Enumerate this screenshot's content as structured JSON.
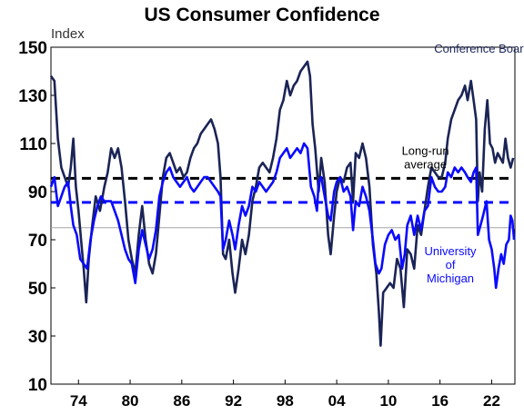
{
  "chart_data": {
    "type": "line",
    "title": "US Consumer Confidence",
    "ylabel": "Index",
    "ylim": [
      10,
      150
    ],
    "xlim": [
      1970.8,
      2024.7
    ],
    "yticks": [
      10,
      30,
      50,
      70,
      90,
      110,
      130,
      150
    ],
    "xticks": [
      {
        "year": 1974,
        "label": "74"
      },
      {
        "year": 1980,
        "label": "80"
      },
      {
        "year": 1986,
        "label": "86"
      },
      {
        "year": 1992,
        "label": "92"
      },
      {
        "year": 1998,
        "label": "98"
      },
      {
        "year": 2004,
        "label": "04"
      },
      {
        "year": 2010,
        "label": "10"
      },
      {
        "year": 2016,
        "label": "16"
      },
      {
        "year": 2022,
        "label": "22"
      }
    ],
    "grid": false,
    "reference_lines": [
      {
        "y": 75,
        "style": "solid",
        "color": "#a6a6a6"
      }
    ],
    "series": [
      {
        "name": "Conference Board",
        "color": "#1a2456",
        "long_run_average": 95.5,
        "points": [
          [
            1970.8,
            138
          ],
          [
            1971.2,
            136
          ],
          [
            1971.6,
            112
          ],
          [
            1972.0,
            100
          ],
          [
            1972.4,
            96
          ],
          [
            1972.8,
            92
          ],
          [
            1973.1,
            100
          ],
          [
            1973.4,
            112
          ],
          [
            1973.7,
            92
          ],
          [
            1974.0,
            82
          ],
          [
            1974.3,
            70
          ],
          [
            1974.6,
            58
          ],
          [
            1974.9,
            44
          ],
          [
            1975.2,
            62
          ],
          [
            1975.6,
            76
          ],
          [
            1976.0,
            88
          ],
          [
            1976.5,
            82
          ],
          [
            1977.0,
            92
          ],
          [
            1977.4,
            98
          ],
          [
            1977.8,
            108
          ],
          [
            1978.2,
            104
          ],
          [
            1978.6,
            108
          ],
          [
            1979.0,
            100
          ],
          [
            1979.4,
            86
          ],
          [
            1979.8,
            70
          ],
          [
            1980.2,
            62
          ],
          [
            1980.6,
            56
          ],
          [
            1981.0,
            72
          ],
          [
            1981.4,
            84
          ],
          [
            1981.8,
            70
          ],
          [
            1982.2,
            60
          ],
          [
            1982.6,
            56
          ],
          [
            1983.0,
            64
          ],
          [
            1983.4,
            80
          ],
          [
            1983.8,
            96
          ],
          [
            1984.2,
            104
          ],
          [
            1984.6,
            106
          ],
          [
            1985.0,
            102
          ],
          [
            1985.4,
            98
          ],
          [
            1985.8,
            100
          ],
          [
            1986.2,
            96
          ],
          [
            1986.6,
            98
          ],
          [
            1987.0,
            104
          ],
          [
            1987.4,
            108
          ],
          [
            1987.8,
            110
          ],
          [
            1988.2,
            114
          ],
          [
            1988.6,
            116
          ],
          [
            1989.0,
            118
          ],
          [
            1989.4,
            120
          ],
          [
            1989.8,
            116
          ],
          [
            1990.2,
            110
          ],
          [
            1990.5,
            96
          ],
          [
            1990.8,
            64
          ],
          [
            1991.1,
            62
          ],
          [
            1991.5,
            70
          ],
          [
            1991.9,
            56
          ],
          [
            1992.2,
            48
          ],
          [
            1992.6,
            58
          ],
          [
            1993.0,
            70
          ],
          [
            1993.4,
            64
          ],
          [
            1993.8,
            72
          ],
          [
            1994.2,
            86
          ],
          [
            1994.6,
            92
          ],
          [
            1995.0,
            100
          ],
          [
            1995.4,
            102
          ],
          [
            1995.8,
            100
          ],
          [
            1996.2,
            98
          ],
          [
            1996.6,
            104
          ],
          [
            1997.0,
            112
          ],
          [
            1997.4,
            124
          ],
          [
            1997.8,
            128
          ],
          [
            1998.2,
            136
          ],
          [
            1998.6,
            130
          ],
          [
            1999.0,
            134
          ],
          [
            1999.4,
            136
          ],
          [
            1999.8,
            140
          ],
          [
            2000.2,
            142
          ],
          [
            2000.6,
            144
          ],
          [
            2000.9,
            138
          ],
          [
            2001.2,
            118
          ],
          [
            2001.5,
            108
          ],
          [
            2001.9,
            90
          ],
          [
            2002.2,
            104
          ],
          [
            2002.6,
            94
          ],
          [
            2003.0,
            72
          ],
          [
            2003.3,
            64
          ],
          [
            2003.7,
            80
          ],
          [
            2004.0,
            90
          ],
          [
            2004.4,
            96
          ],
          [
            2004.8,
            94
          ],
          [
            2005.2,
            100
          ],
          [
            2005.6,
            102
          ],
          [
            2005.9,
            86
          ],
          [
            2006.2,
            106
          ],
          [
            2006.6,
            104
          ],
          [
            2007.0,
            110
          ],
          [
            2007.4,
            104
          ],
          [
            2007.8,
            92
          ],
          [
            2008.2,
            68
          ],
          [
            2008.6,
            56
          ],
          [
            2008.9,
            40
          ],
          [
            2009.1,
            26
          ],
          [
            2009.4,
            48
          ],
          [
            2009.8,
            50
          ],
          [
            2010.2,
            52
          ],
          [
            2010.6,
            50
          ],
          [
            2011.0,
            62
          ],
          [
            2011.4,
            58
          ],
          [
            2011.8,
            42
          ],
          [
            2012.2,
            66
          ],
          [
            2012.6,
            64
          ],
          [
            2013.0,
            58
          ],
          [
            2013.4,
            76
          ],
          [
            2013.8,
            72
          ],
          [
            2014.2,
            82
          ],
          [
            2014.6,
            92
          ],
          [
            2015.0,
            100
          ],
          [
            2015.4,
            98
          ],
          [
            2015.8,
            96
          ],
          [
            2016.2,
            96
          ],
          [
            2016.6,
            102
          ],
          [
            2016.9,
            112
          ],
          [
            2017.3,
            120
          ],
          [
            2017.7,
            124
          ],
          [
            2018.1,
            128
          ],
          [
            2018.5,
            130
          ],
          [
            2018.9,
            134
          ],
          [
            2019.2,
            128
          ],
          [
            2019.6,
            136
          ],
          [
            2019.9,
            128
          ],
          [
            2020.2,
            120
          ],
          [
            2020.4,
            86
          ],
          [
            2020.6,
            98
          ],
          [
            2020.9,
            90
          ],
          [
            2021.2,
            116
          ],
          [
            2021.5,
            128
          ],
          [
            2021.8,
            110
          ],
          [
            2022.1,
            108
          ],
          [
            2022.4,
            102
          ],
          [
            2022.7,
            106
          ],
          [
            2023.0,
            104
          ],
          [
            2023.3,
            102
          ],
          [
            2023.6,
            112
          ],
          [
            2023.9,
            104
          ],
          [
            2024.2,
            100
          ],
          [
            2024.5,
            104
          ]
        ]
      },
      {
        "name": "University of Michigan",
        "color": "#0a0aff",
        "long_run_average": 85.5,
        "points": [
          [
            1970.8,
            92
          ],
          [
            1971.2,
            96
          ],
          [
            1971.6,
            84
          ],
          [
            1972.0,
            88
          ],
          [
            1972.4,
            92
          ],
          [
            1972.8,
            94
          ],
          [
            1973.1,
            84
          ],
          [
            1973.4,
            76
          ],
          [
            1973.8,
            72
          ],
          [
            1974.2,
            62
          ],
          [
            1974.6,
            60
          ],
          [
            1975.0,
            58
          ],
          [
            1975.4,
            70
          ],
          [
            1975.8,
            78
          ],
          [
            1976.2,
            84
          ],
          [
            1976.6,
            88
          ],
          [
            1977.0,
            86
          ],
          [
            1977.4,
            86
          ],
          [
            1977.8,
            86
          ],
          [
            1978.2,
            82
          ],
          [
            1978.6,
            78
          ],
          [
            1979.0,
            72
          ],
          [
            1979.4,
            66
          ],
          [
            1979.8,
            62
          ],
          [
            1980.2,
            60
          ],
          [
            1980.6,
            52
          ],
          [
            1981.0,
            66
          ],
          [
            1981.4,
            74
          ],
          [
            1981.8,
            68
          ],
          [
            1982.2,
            62
          ],
          [
            1982.6,
            66
          ],
          [
            1983.0,
            74
          ],
          [
            1983.4,
            88
          ],
          [
            1983.8,
            94
          ],
          [
            1984.2,
            98
          ],
          [
            1984.6,
            100
          ],
          [
            1985.0,
            96
          ],
          [
            1985.4,
            94
          ],
          [
            1985.8,
            92
          ],
          [
            1986.2,
            94
          ],
          [
            1986.6,
            96
          ],
          [
            1987.0,
            92
          ],
          [
            1987.4,
            90
          ],
          [
            1987.8,
            92
          ],
          [
            1988.2,
            94
          ],
          [
            1988.6,
            96
          ],
          [
            1989.0,
            96
          ],
          [
            1989.4,
            94
          ],
          [
            1989.8,
            92
          ],
          [
            1990.2,
            90
          ],
          [
            1990.5,
            88
          ],
          [
            1990.8,
            66
          ],
          [
            1991.1,
            70
          ],
          [
            1991.5,
            78
          ],
          [
            1991.9,
            72
          ],
          [
            1992.2,
            66
          ],
          [
            1992.6,
            76
          ],
          [
            1993.0,
            84
          ],
          [
            1993.4,
            80
          ],
          [
            1993.8,
            84
          ],
          [
            1994.2,
            92
          ],
          [
            1994.6,
            90
          ],
          [
            1995.0,
            94
          ],
          [
            1995.4,
            92
          ],
          [
            1995.8,
            90
          ],
          [
            1996.2,
            92
          ],
          [
            1996.6,
            94
          ],
          [
            1997.0,
            98
          ],
          [
            1997.4,
            104
          ],
          [
            1997.8,
            106
          ],
          [
            1998.2,
            108
          ],
          [
            1998.6,
            104
          ],
          [
            1999.0,
            106
          ],
          [
            1999.4,
            108
          ],
          [
            1999.8,
            106
          ],
          [
            2000.2,
            110
          ],
          [
            2000.6,
            108
          ],
          [
            2001.0,
            92
          ],
          [
            2001.4,
            88
          ],
          [
            2001.7,
            82
          ],
          [
            2001.9,
            94
          ],
          [
            2002.2,
            96
          ],
          [
            2002.6,
            88
          ],
          [
            2003.0,
            80
          ],
          [
            2003.3,
            78
          ],
          [
            2003.7,
            90
          ],
          [
            2004.0,
            94
          ],
          [
            2004.4,
            96
          ],
          [
            2004.8,
            90
          ],
          [
            2005.2,
            92
          ],
          [
            2005.6,
            88
          ],
          [
            2005.9,
            74
          ],
          [
            2006.2,
            86
          ],
          [
            2006.6,
            84
          ],
          [
            2007.0,
            92
          ],
          [
            2007.4,
            88
          ],
          [
            2007.8,
            82
          ],
          [
            2008.2,
            70
          ],
          [
            2008.5,
            60
          ],
          [
            2008.9,
            56
          ],
          [
            2009.2,
            58
          ],
          [
            2009.6,
            68
          ],
          [
            2010.0,
            72
          ],
          [
            2010.4,
            74
          ],
          [
            2010.8,
            70
          ],
          [
            2011.2,
            72
          ],
          [
            2011.6,
            58
          ],
          [
            2011.9,
            64
          ],
          [
            2012.2,
            76
          ],
          [
            2012.6,
            80
          ],
          [
            2013.0,
            72
          ],
          [
            2013.4,
            80
          ],
          [
            2013.8,
            74
          ],
          [
            2014.2,
            82
          ],
          [
            2014.6,
            84
          ],
          [
            2015.0,
            96
          ],
          [
            2015.4,
            92
          ],
          [
            2015.8,
            90
          ],
          [
            2016.2,
            90
          ],
          [
            2016.6,
            92
          ],
          [
            2016.9,
            98
          ],
          [
            2017.3,
            96
          ],
          [
            2017.7,
            100
          ],
          [
            2018.1,
            98
          ],
          [
            2018.5,
            100
          ],
          [
            2018.9,
            98
          ],
          [
            2019.2,
            96
          ],
          [
            2019.6,
            94
          ],
          [
            2019.9,
            98
          ],
          [
            2020.2,
            100
          ],
          [
            2020.4,
            72
          ],
          [
            2020.7,
            76
          ],
          [
            2021.0,
            80
          ],
          [
            2021.4,
            86
          ],
          [
            2021.7,
            70
          ],
          [
            2022.0,
            66
          ],
          [
            2022.3,
            58
          ],
          [
            2022.5,
            50
          ],
          [
            2022.8,
            58
          ],
          [
            2023.1,
            64
          ],
          [
            2023.4,
            60
          ],
          [
            2023.7,
            68
          ],
          [
            2024.0,
            70
          ],
          [
            2024.2,
            80
          ],
          [
            2024.4,
            78
          ],
          [
            2024.6,
            70
          ]
        ]
      }
    ],
    "annotations": [
      {
        "lines": [
          "Conference Board"
        ],
        "year": 2020.9,
        "y": 147.7,
        "color": "#1a2456",
        "anchor": "middle"
      },
      {
        "lines": [
          "Long-run",
          "average"
        ],
        "year": 2014.3,
        "y": 105.3,
        "color": "#000000",
        "anchor": "middle"
      },
      {
        "lines": [
          "University",
          "of",
          "Michigan"
        ],
        "year": 2017.2,
        "y": 63.6,
        "color": "#0a0aff",
        "anchor": "middle"
      }
    ]
  }
}
